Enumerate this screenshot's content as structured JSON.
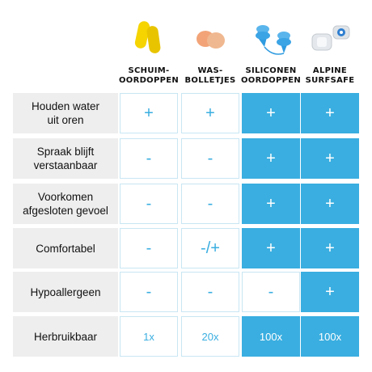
{
  "accent_color": "#3aaee0",
  "columns": [
    {
      "label": "SCHUIM-\nOORDOPPEN",
      "icon": "foam-earplugs-icon"
    },
    {
      "label": "WAS-\nBOLLETJES",
      "icon": "wax-balls-icon"
    },
    {
      "label": "SILICONEN\nOORDOPPEN",
      "icon": "silicone-earplugs-icon"
    },
    {
      "label": "ALPINE\nSURFSAFE",
      "icon": "alpine-surfsafe-icon"
    }
  ],
  "rows": [
    {
      "label": "Houden water\nuit oren",
      "values": [
        "+",
        "+",
        "+",
        "+"
      ]
    },
    {
      "label": "Spraak blijft\nverstaanbaar",
      "values": [
        "-",
        "-",
        "+",
        "+"
      ]
    },
    {
      "label": "Voorkomen\nafgesloten gevoel",
      "values": [
        "-",
        "-",
        "+",
        "+"
      ]
    },
    {
      "label": "Comfortabel",
      "values": [
        "-",
        "-/+",
        "+",
        "+"
      ]
    },
    {
      "label": "Hypoallergeen",
      "values": [
        "-",
        "-",
        "-",
        "+"
      ]
    },
    {
      "label": "Herbruikbaar",
      "values": [
        "1x",
        "20x",
        "100x",
        "100x"
      ]
    }
  ]
}
